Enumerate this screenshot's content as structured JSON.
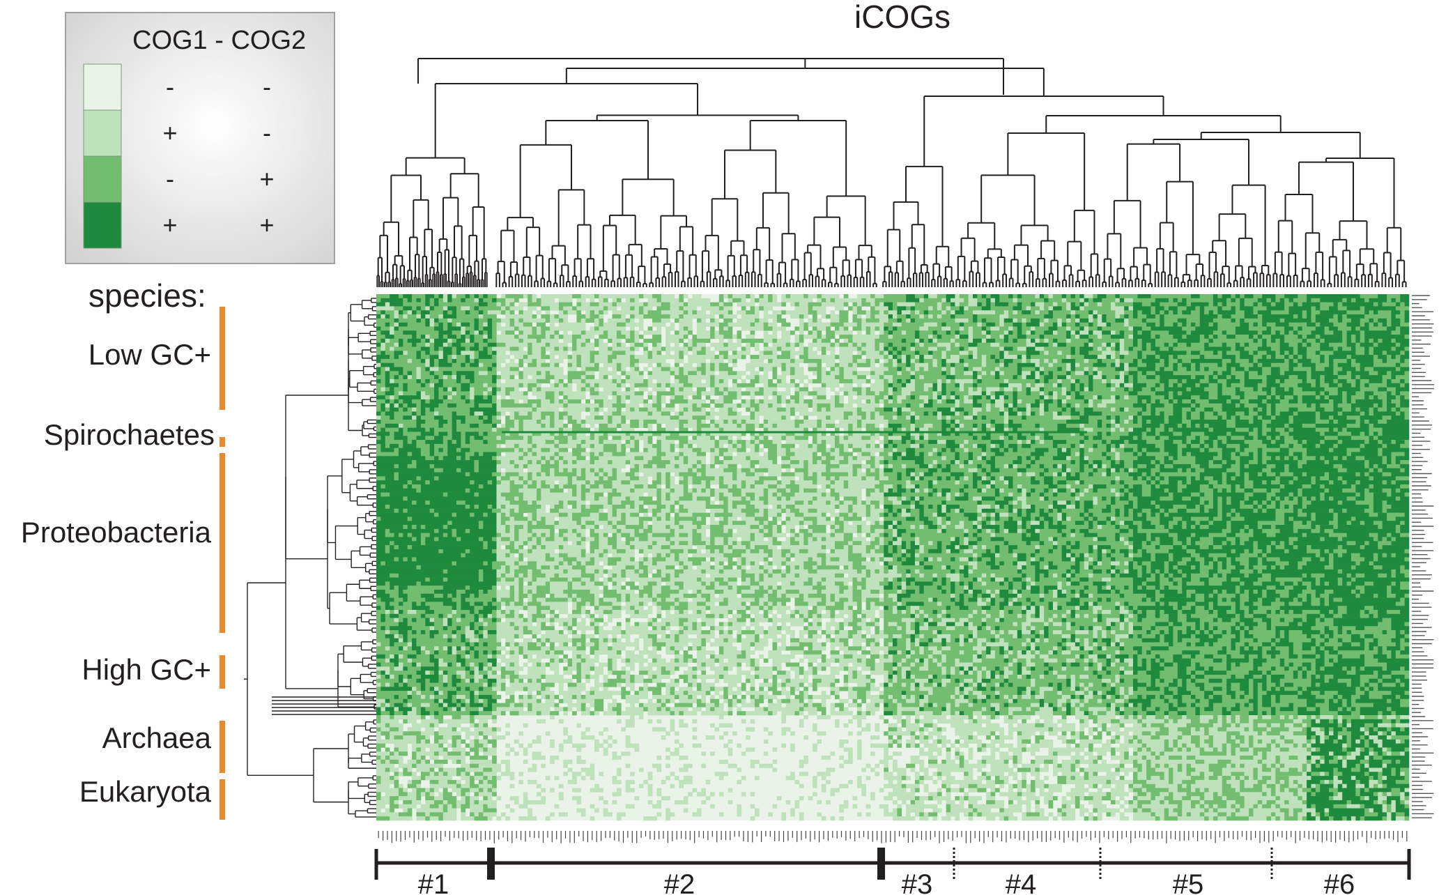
{
  "title": "iCOGs",
  "legend": {
    "header": "COG1 - COG2",
    "rows": [
      {
        "color": "#eaf3e8",
        "cog1": "-",
        "cog2": "-"
      },
      {
        "color": "#bfe1bc",
        "cog1": "+",
        "cog2": "-"
      },
      {
        "color": "#72bd6f",
        "cog1": "-",
        "cog2": "+"
      },
      {
        "color": "#1f8a3e",
        "cog1": "+",
        "cog2": "+"
      }
    ]
  },
  "species_header": "species:",
  "species_groups": [
    {
      "label": "Low GC+"
    },
    {
      "label": "Spirochaetes"
    },
    {
      "label": "Proteobacteria"
    },
    {
      "label": "High GC+"
    },
    {
      "label": "Archaea"
    },
    {
      "label": "Eukaryota"
    }
  ],
  "clusters": [
    "#1",
    "#2",
    "#3",
    "#4",
    "#5",
    "#6"
  ],
  "colors": {
    "accent_bar": "#e8892c",
    "tree": "#231f20",
    "level_0": "#eaf3e8",
    "level_1": "#bfe1bc",
    "level_2": "#72bd6f",
    "level_3": "#1f8a3e"
  }
}
